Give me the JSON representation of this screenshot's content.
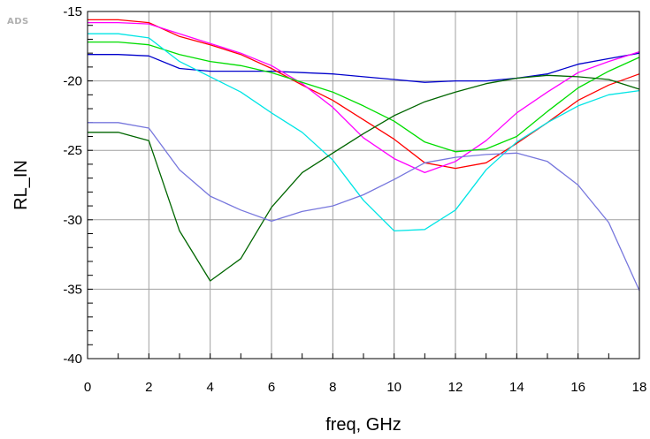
{
  "logo_text": "ADS",
  "chart_data": {
    "type": "line",
    "xlabel": "freq, GHz",
    "ylabel": "RL_IN",
    "xlim": [
      0,
      18
    ],
    "ylim": [
      -40,
      -15
    ],
    "x_ticks": [
      0,
      2,
      4,
      6,
      8,
      10,
      12,
      14,
      16,
      18
    ],
    "y_ticks": [
      -40,
      -35,
      -30,
      -25,
      -20,
      -15
    ],
    "x_minor_step": 1,
    "y_minor_step": 1,
    "grid": true,
    "x": [
      0,
      1,
      2,
      3,
      4,
      5,
      6,
      7,
      8,
      9,
      10,
      11,
      12,
      13,
      14,
      15,
      16,
      17,
      18
    ],
    "series": [
      {
        "color": "#0000cc",
        "values": [
          -18.1,
          -18.1,
          -18.2,
          -19.1,
          -19.3,
          -19.3,
          -19.3,
          -19.4,
          -19.5,
          -19.7,
          -19.9,
          -20.1,
          -20.0,
          -20.0,
          -19.8,
          -19.5,
          -18.8,
          -18.4,
          -18.0
        ]
      },
      {
        "color": "#ff0000",
        "values": [
          -15.6,
          -15.6,
          -15.8,
          -16.8,
          -17.4,
          -18.1,
          -19.1,
          -20.3,
          -21.4,
          -22.8,
          -24.2,
          -25.9,
          -26.3,
          -25.9,
          -24.5,
          -23.0,
          -21.4,
          -20.3,
          -19.5
        ]
      },
      {
        "color": "#ff00ff",
        "values": [
          -15.8,
          -15.8,
          -15.9,
          -16.6,
          -17.3,
          -18.0,
          -18.9,
          -20.2,
          -21.9,
          -24.1,
          -25.6,
          -26.6,
          -25.8,
          -24.3,
          -22.3,
          -20.8,
          -19.4,
          -18.6,
          -17.9
        ]
      },
      {
        "color": "#00dd00",
        "values": [
          -17.2,
          -17.2,
          -17.4,
          -18.1,
          -18.6,
          -18.9,
          -19.4,
          -20.1,
          -20.8,
          -21.8,
          -22.9,
          -24.4,
          -25.1,
          -24.9,
          -24.0,
          -22.2,
          -20.5,
          -19.3,
          -18.3
        ]
      },
      {
        "color": "#00e5e5",
        "values": [
          -16.6,
          -16.6,
          -16.9,
          -18.6,
          -19.7,
          -20.8,
          -22.3,
          -23.7,
          -25.7,
          -28.6,
          -30.8,
          -30.7,
          -29.3,
          -26.4,
          -24.4,
          -23.0,
          -21.8,
          -21.0,
          -20.7
        ]
      },
      {
        "color": "#006600",
        "values": [
          -23.7,
          -23.7,
          -24.3,
          -30.8,
          -34.4,
          -32.8,
          -29.1,
          -26.6,
          -25.2,
          -23.8,
          -22.5,
          -21.5,
          -20.8,
          -20.2,
          -19.8,
          -19.6,
          -19.7,
          -19.9,
          -20.6
        ]
      },
      {
        "color": "#7777dd",
        "values": [
          -23.0,
          -23.0,
          -23.4,
          -26.4,
          -28.3,
          -29.3,
          -30.1,
          -29.4,
          -29.0,
          -28.2,
          -27.1,
          -25.9,
          -25.5,
          -25.3,
          -25.2,
          -25.8,
          -27.5,
          -30.2,
          -35.1
        ]
      }
    ]
  }
}
